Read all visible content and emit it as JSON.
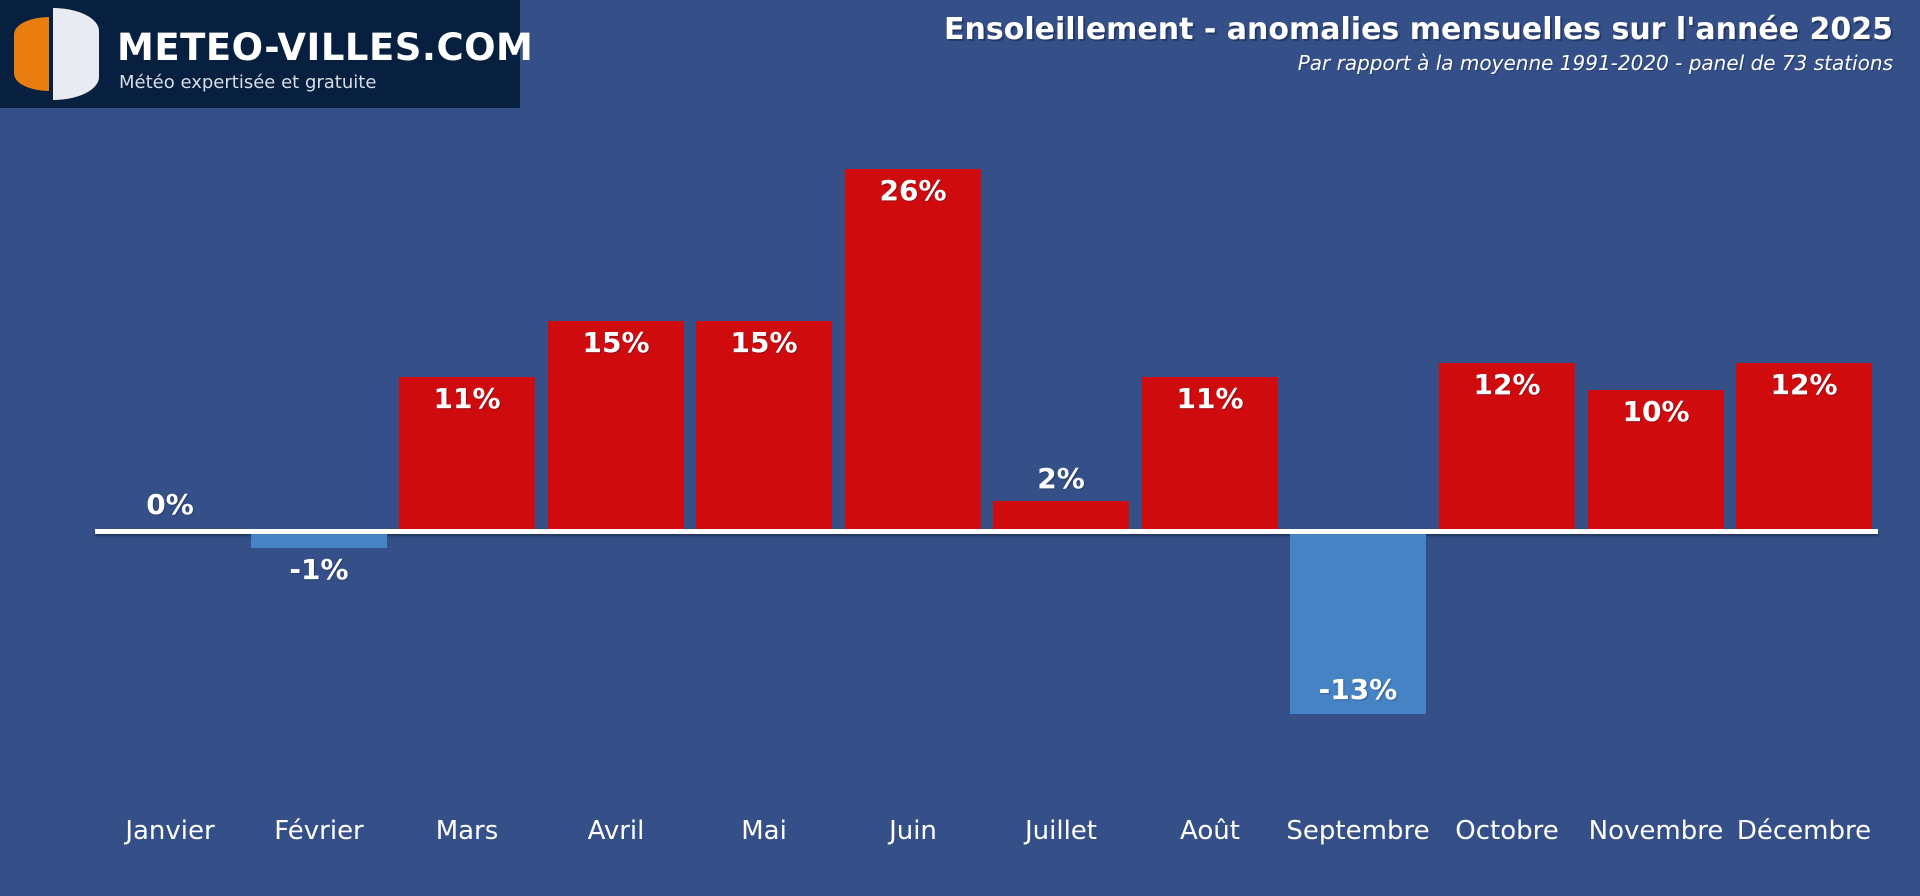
{
  "brand": {
    "name": "METEO-VILLES.COM",
    "tagline": "Météo expertisée et gratuite"
  },
  "header": {
    "title": "Ensoleillement - anomalies mensuelles sur l'année 2025",
    "subtitle": "Par rapport à la moyenne 1991-2020 - panel de 73 stations"
  },
  "chart_data": {
    "type": "bar",
    "title": "Ensoleillement - anomalies mensuelles sur l'année 2025",
    "subtitle": "Par rapport à la moyenne 1991-2020 - panel de 73 stations",
    "unit": "%",
    "categories": [
      "Janvier",
      "Février",
      "Mars",
      "Avril",
      "Mai",
      "Juin",
      "Juillet",
      "Août",
      "Septembre",
      "Octobre",
      "Novembre",
      "Décembre"
    ],
    "values": [
      0,
      -1,
      11,
      15,
      15,
      26,
      2,
      11,
      -13,
      12,
      10,
      12
    ],
    "value_labels": [
      "0%",
      "-1%",
      "11%",
      "15%",
      "15%",
      "26%",
      "2%",
      "11%",
      "-13%",
      "12%",
      "10%",
      "12%"
    ],
    "baseline": 0,
    "ylim": [
      -15,
      28
    ],
    "grid": false,
    "legend": false,
    "bar_colors": {
      "positive": "#d00b0e",
      "negative": "#4583c5"
    },
    "axis_color": "#ffffff",
    "background": "#354f88"
  }
}
